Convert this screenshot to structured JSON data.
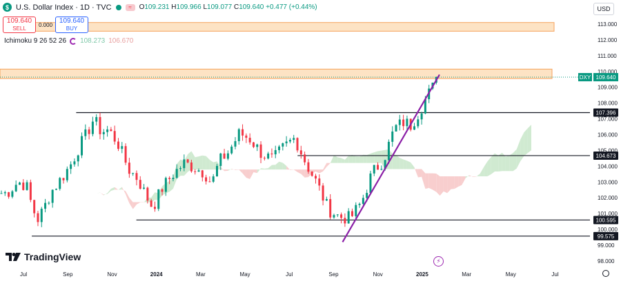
{
  "header": {
    "symbol_icon": "dollar-icon",
    "symbol_title": "U.S. Dollar Index · 1D · TVC",
    "ohlc": [
      {
        "label": "O",
        "value": "109.231"
      },
      {
        "label": "H",
        "value": "109.966"
      },
      {
        "label": "L",
        "value": "109.077"
      },
      {
        "label": "C",
        "value": "109.640"
      },
      {
        "label": "",
        "value": "+0.477 (+0.44%)"
      }
    ],
    "currency": "USD"
  },
  "trade": {
    "sell_price": "109.640",
    "sell_label": "SELL",
    "spread": "0.000",
    "buy_price": "109.640",
    "buy_label": "BUY"
  },
  "indicator": {
    "name": "Ichimoku 9 26 52 26",
    "value1": "108.273",
    "value2": "106.670"
  },
  "branding": {
    "logo_text": "TradingView"
  },
  "colors": {
    "up": "#089981",
    "down": "#f23645",
    "zone_fill": "#fde3c4",
    "zone_border": "#f5a25c",
    "trendline": "#8a1ea6",
    "hline": "#131722",
    "cloud_bull": "#c8e6c9",
    "cloud_bear": "#f7c6c6",
    "price_label": "#089981"
  },
  "chart_data": {
    "type": "candlestick",
    "y_ticks": [
      "113.000",
      "112.000",
      "111.000",
      "110.000",
      "109.000",
      "108.000",
      "107.000",
      "106.000",
      "105.000",
      "104.000",
      "103.000",
      "102.000",
      "101.000",
      "100.000",
      "99.000",
      "98.000"
    ],
    "x_ticks": [
      "Jul",
      "Sep",
      "Nov",
      "2024",
      "Mar",
      "May",
      "Jul",
      "Sep",
      "Nov",
      "2025",
      "Mar",
      "May",
      "Jul"
    ],
    "last_price": {
      "symbol": "DXY",
      "value": 109.64
    },
    "horizontal_levels": [
      {
        "value": 107.396,
        "label": "107.396",
        "from": "Oct 2023"
      },
      {
        "value": 104.673,
        "label": "104.673",
        "from": "Jul 2024"
      },
      {
        "value": 100.595,
        "label": "100.595",
        "from": "Dec 2023"
      },
      {
        "value": 99.575,
        "label": "99.575",
        "from": "Jul 2023"
      }
    ],
    "zones": [
      {
        "low": 112.55,
        "high": 113.1,
        "from": "Jul 2023"
      },
      {
        "low": 109.55,
        "high": 110.15,
        "from": "Jun 2023"
      }
    ],
    "trendline": [
      {
        "date": "Sep 2024",
        "value": 99.2
      },
      {
        "date": "Jan 2025",
        "value": 109.8
      }
    ],
    "close_path": [
      [
        "Jun 2023",
        102.3
      ],
      [
        "Jun 2023",
        103.0
      ],
      [
        "Jul 2023",
        102.8
      ],
      [
        "Jul 2023",
        101.5
      ],
      [
        "Jul 2023",
        100.6
      ],
      [
        "Jul 2023",
        101.2
      ],
      [
        "Aug 2023",
        102.4
      ],
      [
        "Aug 2023",
        103.3
      ],
      [
        "Sep 2023",
        104.2
      ],
      [
        "Sep 2023",
        105.2
      ],
      [
        "Sep 2023",
        106.0
      ],
      [
        "Oct 2023",
        107.0
      ],
      [
        "Oct 2023",
        106.2
      ],
      [
        "Oct 2023",
        106.3
      ],
      [
        "Nov 2023",
        105.5
      ],
      [
        "Nov 2023",
        103.8
      ],
      [
        "Dec 2023",
        103.2
      ],
      [
        "Dec 2023",
        102.2
      ],
      [
        "Dec 2023",
        101.4
      ],
      [
        "Jan 2024",
        102.6
      ],
      [
        "Jan 2024",
        103.5
      ],
      [
        "Feb 2024",
        104.2
      ],
      [
        "Feb 2024",
        103.9
      ],
      [
        "Mar 2024",
        103.6
      ],
      [
        "Mar 2024",
        102.9
      ],
      [
        "Mar 2024",
        104.3
      ],
      [
        "Apr 2024",
        104.9
      ],
      [
        "Apr 2024",
        106.1
      ],
      [
        "May 2024",
        105.7
      ],
      [
        "May 2024",
        104.8
      ],
      [
        "Jun 2024",
        104.4
      ],
      [
        "Jun 2024",
        105.2
      ],
      [
        "Jul 2024",
        105.8
      ],
      [
        "Jul 2024",
        104.2
      ],
      [
        "Aug 2024",
        102.9
      ],
      [
        "Aug 2024",
        101.3
      ],
      [
        "Sep 2024",
        100.8
      ],
      [
        "Sep 2024",
        100.7
      ],
      [
        "Oct 2024",
        101.7
      ],
      [
        "Oct 2024",
        103.6
      ],
      [
        "Nov 2024",
        104.4
      ],
      [
        "Nov 2024",
        106.4
      ],
      [
        "Dec 2024",
        106.8
      ],
      [
        "Dec 2024",
        106.6
      ],
      [
        "Dec 2024",
        107.4
      ],
      [
        "Jan 2025",
        108.5
      ],
      [
        "Jan 2025",
        109.6
      ]
    ],
    "ichimoku_cloud": {
      "bull_color": "#c8e6c9",
      "bear_color": "#f7c6c6",
      "last_span_a": 108.273,
      "last_span_b": 106.67
    },
    "grid": false,
    "legend": "top-left"
  }
}
